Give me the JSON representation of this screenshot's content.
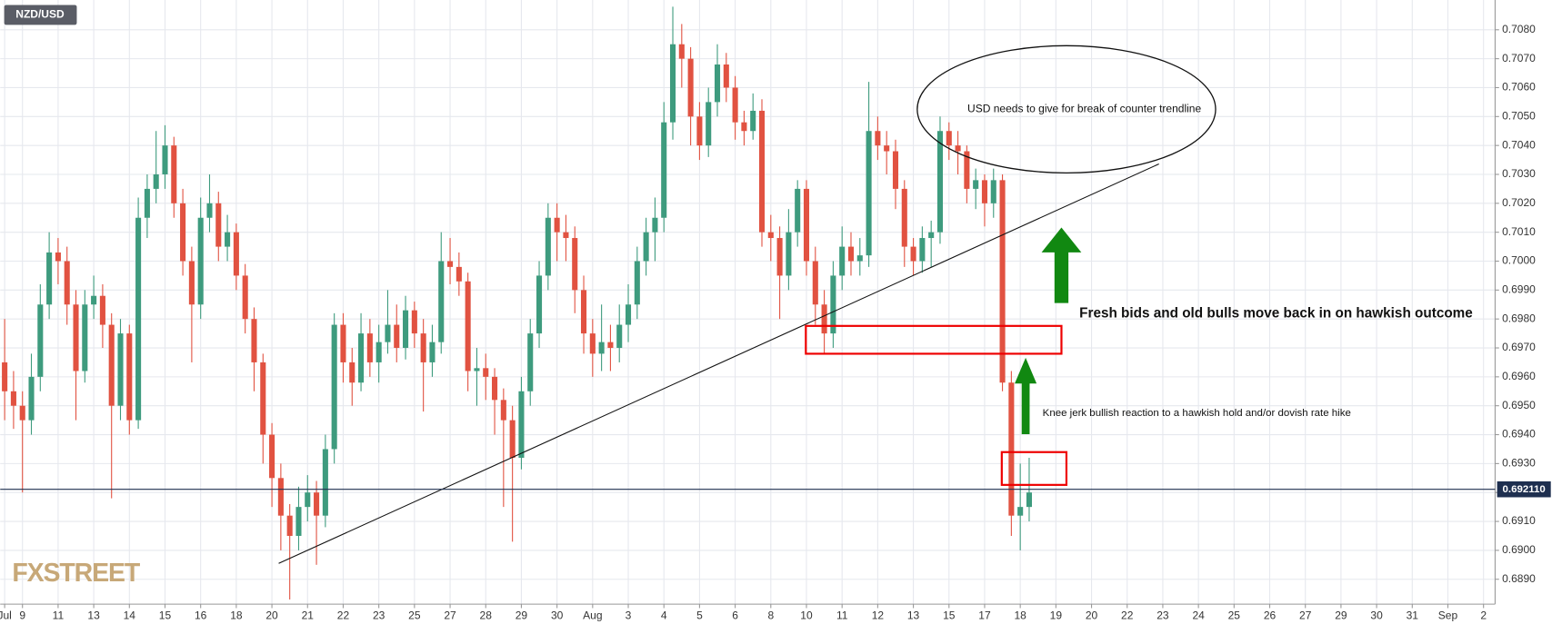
{
  "chart_data": {
    "type": "candlestick",
    "symbol": "NZD/USD",
    "logo": "FXSTREET",
    "up_color": "#3e9b7e",
    "down_color": "#e15241",
    "grid": true,
    "ylim": [
      0.68814,
      0.70903
    ],
    "xlim": [
      -2.5,
      165.3
    ],
    "yticks": [
      {
        "value": 0.689,
        "label": "0.6890"
      },
      {
        "value": 0.69,
        "label": "0.6900"
      },
      {
        "value": 0.691,
        "label": "0.6910"
      },
      {
        "value": 0.692,
        "label": "0.6920"
      },
      {
        "value": 0.693,
        "label": "0.6930"
      },
      {
        "value": 0.694,
        "label": "0.6940"
      },
      {
        "value": 0.695,
        "label": "0.6950"
      },
      {
        "value": 0.696,
        "label": "0.6960"
      },
      {
        "value": 0.697,
        "label": "0.6970"
      },
      {
        "value": 0.698,
        "label": "0.6980"
      },
      {
        "value": 0.699,
        "label": "0.6990"
      },
      {
        "value": 0.7,
        "label": "0.7000"
      },
      {
        "value": 0.701,
        "label": "0.7010"
      },
      {
        "value": 0.702,
        "label": "0.7020"
      },
      {
        "value": 0.703,
        "label": "0.7030"
      },
      {
        "value": 0.704,
        "label": "0.7040"
      },
      {
        "value": 0.705,
        "label": "0.7050"
      },
      {
        "value": 0.706,
        "label": "0.7060"
      },
      {
        "value": 0.707,
        "label": "0.7070"
      },
      {
        "value": 0.708,
        "label": "0.7080"
      }
    ],
    "xticks": [
      {
        "value": -2,
        "label": "Jul"
      },
      {
        "value": 0,
        "label": "9"
      },
      {
        "value": 4,
        "label": "11"
      },
      {
        "value": 8,
        "label": "13"
      },
      {
        "value": 12,
        "label": "14"
      },
      {
        "value": 16,
        "label": "15"
      },
      {
        "value": 20,
        "label": "16"
      },
      {
        "value": 24,
        "label": "18"
      },
      {
        "value": 28,
        "label": "20"
      },
      {
        "value": 32,
        "label": "21"
      },
      {
        "value": 36,
        "label": "22"
      },
      {
        "value": 40,
        "label": "23"
      },
      {
        "value": 44,
        "label": "25"
      },
      {
        "value": 48,
        "label": "27"
      },
      {
        "value": 52,
        "label": "28"
      },
      {
        "value": 56,
        "label": "29"
      },
      {
        "value": 60,
        "label": "30"
      },
      {
        "value": 64,
        "label": "Aug"
      },
      {
        "value": 68,
        "label": "3"
      },
      {
        "value": 72,
        "label": "4"
      },
      {
        "value": 76,
        "label": "5"
      },
      {
        "value": 80,
        "label": "6"
      },
      {
        "value": 84,
        "label": "8"
      },
      {
        "value": 88,
        "label": "10"
      },
      {
        "value": 92,
        "label": "11"
      },
      {
        "value": 96,
        "label": "12"
      },
      {
        "value": 100,
        "label": "13"
      },
      {
        "value": 104,
        "label": "15"
      },
      {
        "value": 108,
        "label": "17"
      },
      {
        "value": 112,
        "label": "18"
      },
      {
        "value": 116,
        "label": "19"
      },
      {
        "value": 120,
        "label": "20"
      },
      {
        "value": 124,
        "label": "22"
      },
      {
        "value": 128,
        "label": "23"
      },
      {
        "value": 132,
        "label": "24"
      },
      {
        "value": 136,
        "label": "25"
      },
      {
        "value": 140,
        "label": "26"
      },
      {
        "value": 144,
        "label": "27"
      },
      {
        "value": 148,
        "label": "29"
      },
      {
        "value": 152,
        "label": "30"
      },
      {
        "value": 156,
        "label": "31"
      },
      {
        "value": 160,
        "label": "Sep"
      },
      {
        "value": 164,
        "label": "2"
      }
    ],
    "last_price": {
      "value": 0.69211,
      "label": "0.692110"
    },
    "annotations": [
      "USD needs to give for break of counter trendline",
      "Fresh bids and old bulls move back in on hawkish  outcome",
      "Knee jerk bullish reaction to a hawkish hold and/or dovish rate hike"
    ],
    "x": [
      -2,
      -1,
      0,
      1,
      2,
      3,
      4,
      5,
      6,
      7,
      8,
      9,
      10,
      11,
      12,
      13,
      14,
      15,
      16,
      17,
      18,
      19,
      20,
      21,
      22,
      23,
      24,
      25,
      26,
      27,
      28,
      29,
      30,
      31,
      32,
      33,
      34,
      35,
      36,
      37,
      38,
      39,
      40,
      41,
      42,
      43,
      44,
      45,
      46,
      47,
      48,
      49,
      50,
      51,
      52,
      53,
      54,
      55,
      56,
      57,
      58,
      59,
      60,
      61,
      62,
      63,
      64,
      65,
      66,
      67,
      68,
      69,
      70,
      71,
      72,
      73,
      74,
      75,
      76,
      77,
      78,
      79,
      80,
      81,
      82,
      83,
      84,
      85,
      86,
      87,
      88,
      89,
      90,
      91,
      92,
      93,
      94,
      95,
      96,
      97,
      98,
      99,
      100,
      101,
      102,
      103,
      104,
      105,
      106,
      107,
      108,
      109,
      110,
      111,
      112,
      113
    ],
    "ohlc": [
      [
        0.6965,
        0.698,
        0.6945,
        0.6955
      ],
      [
        0.6955,
        0.6962,
        0.6942,
        0.695
      ],
      [
        0.695,
        0.6955,
        0.692,
        0.6945
      ],
      [
        0.6945,
        0.6968,
        0.694,
        0.696
      ],
      [
        0.696,
        0.6992,
        0.6955,
        0.6985
      ],
      [
        0.6985,
        0.701,
        0.698,
        0.7003
      ],
      [
        0.7003,
        0.7008,
        0.6992,
        0.7
      ],
      [
        0.7,
        0.7005,
        0.6978,
        0.6985
      ],
      [
        0.6985,
        0.699,
        0.6945,
        0.6962
      ],
      [
        0.6962,
        0.699,
        0.6958,
        0.6985
      ],
      [
        0.6985,
        0.6995,
        0.698,
        0.6988
      ],
      [
        0.6988,
        0.6992,
        0.697,
        0.6978
      ],
      [
        0.6978,
        0.6982,
        0.6918,
        0.695
      ],
      [
        0.695,
        0.698,
        0.6945,
        0.6975
      ],
      [
        0.6975,
        0.6978,
        0.694,
        0.6945
      ],
      [
        0.6945,
        0.7022,
        0.6942,
        0.7015
      ],
      [
        0.7015,
        0.703,
        0.7008,
        0.7025
      ],
      [
        0.7025,
        0.7045,
        0.702,
        0.703
      ],
      [
        0.703,
        0.7047,
        0.7025,
        0.704
      ],
      [
        0.704,
        0.7043,
        0.7015,
        0.702
      ],
      [
        0.702,
        0.7025,
        0.6995,
        0.7
      ],
      [
        0.7,
        0.7005,
        0.6965,
        0.6985
      ],
      [
        0.6985,
        0.7022,
        0.698,
        0.7015
      ],
      [
        0.7015,
        0.703,
        0.701,
        0.702
      ],
      [
        0.702,
        0.7024,
        0.7,
        0.7005
      ],
      [
        0.7005,
        0.7016,
        0.7,
        0.701
      ],
      [
        0.701,
        0.7013,
        0.699,
        0.6995
      ],
      [
        0.6995,
        0.6999,
        0.6975,
        0.698
      ],
      [
        0.698,
        0.6984,
        0.6955,
        0.6965
      ],
      [
        0.6965,
        0.6968,
        0.693,
        0.694
      ],
      [
        0.694,
        0.6944,
        0.6915,
        0.6925
      ],
      [
        0.6925,
        0.693,
        0.69,
        0.6912
      ],
      [
        0.6912,
        0.6916,
        0.6883,
        0.6905
      ],
      [
        0.6905,
        0.6922,
        0.69,
        0.6915
      ],
      [
        0.6915,
        0.6926,
        0.691,
        0.692
      ],
      [
        0.692,
        0.6924,
        0.6895,
        0.6912
      ],
      [
        0.6912,
        0.694,
        0.6908,
        0.6935
      ],
      [
        0.6935,
        0.6982,
        0.693,
        0.6978
      ],
      [
        0.6978,
        0.6982,
        0.6958,
        0.6965
      ],
      [
        0.6965,
        0.697,
        0.695,
        0.6958
      ],
      [
        0.6958,
        0.6982,
        0.6955,
        0.6975
      ],
      [
        0.6975,
        0.698,
        0.696,
        0.6965
      ],
      [
        0.6965,
        0.6978,
        0.6958,
        0.6972
      ],
      [
        0.6972,
        0.699,
        0.6968,
        0.6978
      ],
      [
        0.6978,
        0.6985,
        0.6965,
        0.697
      ],
      [
        0.697,
        0.6988,
        0.6966,
        0.6983
      ],
      [
        0.6983,
        0.6986,
        0.697,
        0.6975
      ],
      [
        0.6975,
        0.698,
        0.6948,
        0.6965
      ],
      [
        0.6965,
        0.6978,
        0.696,
        0.6972
      ],
      [
        0.6972,
        0.701,
        0.6968,
        0.7
      ],
      [
        0.7,
        0.7008,
        0.6992,
        0.6998
      ],
      [
        0.6998,
        0.7003,
        0.6988,
        0.6993
      ],
      [
        0.6993,
        0.6996,
        0.6955,
        0.6962
      ],
      [
        0.6962,
        0.697,
        0.695,
        0.6963
      ],
      [
        0.6963,
        0.6968,
        0.6952,
        0.696
      ],
      [
        0.696,
        0.6963,
        0.694,
        0.6952
      ],
      [
        0.6952,
        0.6956,
        0.6915,
        0.6945
      ],
      [
        0.6945,
        0.695,
        0.6903,
        0.6932
      ],
      [
        0.6932,
        0.696,
        0.6928,
        0.6955
      ],
      [
        0.6955,
        0.698,
        0.695,
        0.6975
      ],
      [
        0.6975,
        0.7,
        0.697,
        0.6995
      ],
      [
        0.6995,
        0.702,
        0.699,
        0.7015
      ],
      [
        0.7015,
        0.702,
        0.7,
        0.701
      ],
      [
        0.701,
        0.7016,
        0.7,
        0.7008
      ],
      [
        0.7008,
        0.7012,
        0.6982,
        0.699
      ],
      [
        0.699,
        0.6995,
        0.6968,
        0.6975
      ],
      [
        0.6975,
        0.698,
        0.696,
        0.6968
      ],
      [
        0.6968,
        0.6985,
        0.6962,
        0.6972
      ],
      [
        0.6972,
        0.6978,
        0.6962,
        0.697
      ],
      [
        0.697,
        0.6985,
        0.6965,
        0.6978
      ],
      [
        0.6978,
        0.6992,
        0.6972,
        0.6985
      ],
      [
        0.6985,
        0.7005,
        0.698,
        0.7
      ],
      [
        0.7,
        0.7015,
        0.6995,
        0.701
      ],
      [
        0.701,
        0.7022,
        0.7,
        0.7015
      ],
      [
        0.7015,
        0.7055,
        0.701,
        0.7048
      ],
      [
        0.7048,
        0.7088,
        0.7042,
        0.7075
      ],
      [
        0.7075,
        0.7082,
        0.706,
        0.707
      ],
      [
        0.707,
        0.7074,
        0.704,
        0.705
      ],
      [
        0.705,
        0.7055,
        0.7035,
        0.704
      ],
      [
        0.704,
        0.706,
        0.7036,
        0.7055
      ],
      [
        0.7055,
        0.7075,
        0.705,
        0.7068
      ],
      [
        0.7068,
        0.7072,
        0.7055,
        0.706
      ],
      [
        0.706,
        0.7064,
        0.7042,
        0.7048
      ],
      [
        0.7048,
        0.7052,
        0.704,
        0.7045
      ],
      [
        0.7045,
        0.7058,
        0.7042,
        0.7052
      ],
      [
        0.7052,
        0.7056,
        0.7005,
        0.701
      ],
      [
        0.701,
        0.7016,
        0.7,
        0.7008
      ],
      [
        0.7008,
        0.7012,
        0.698,
        0.6995
      ],
      [
        0.6995,
        0.7018,
        0.699,
        0.701
      ],
      [
        0.701,
        0.7028,
        0.7005,
        0.7025
      ],
      [
        0.7025,
        0.7028,
        0.6995,
        0.7
      ],
      [
        0.7,
        0.7005,
        0.6978,
        0.6985
      ],
      [
        0.6985,
        0.699,
        0.6968,
        0.6975
      ],
      [
        0.6975,
        0.7,
        0.697,
        0.6995
      ],
      [
        0.6995,
        0.7012,
        0.699,
        0.7005
      ],
      [
        0.7005,
        0.701,
        0.6995,
        0.7
      ],
      [
        0.7,
        0.7008,
        0.6995,
        0.7002
      ],
      [
        0.7002,
        0.7062,
        0.6998,
        0.7045
      ],
      [
        0.7045,
        0.705,
        0.7035,
        0.704
      ],
      [
        0.704,
        0.7045,
        0.703,
        0.7038
      ],
      [
        0.7038,
        0.7042,
        0.7018,
        0.7025
      ],
      [
        0.7025,
        0.7028,
        0.6998,
        0.7005
      ],
      [
        0.7005,
        0.7008,
        0.6995,
        0.7
      ],
      [
        0.7,
        0.7012,
        0.6996,
        0.7008
      ],
      [
        0.7008,
        0.7014,
        0.6998,
        0.701
      ],
      [
        0.701,
        0.705,
        0.7006,
        0.7045
      ],
      [
        0.7045,
        0.7048,
        0.7035,
        0.704
      ],
      [
        0.704,
        0.7045,
        0.703,
        0.7038
      ],
      [
        0.7038,
        0.704,
        0.702,
        0.7025
      ],
      [
        0.7025,
        0.7032,
        0.7018,
        0.7028
      ],
      [
        0.7028,
        0.703,
        0.7012,
        0.702
      ],
      [
        0.702,
        0.7032,
        0.7015,
        0.7028
      ],
      [
        0.7028,
        0.703,
        0.6955,
        0.6958
      ],
      [
        0.6958,
        0.6962,
        0.6905,
        0.6912
      ],
      [
        0.6912,
        0.693,
        0.69,
        0.6915
      ],
      [
        0.6915,
        0.6932,
        0.691,
        0.692
      ]
    ]
  }
}
